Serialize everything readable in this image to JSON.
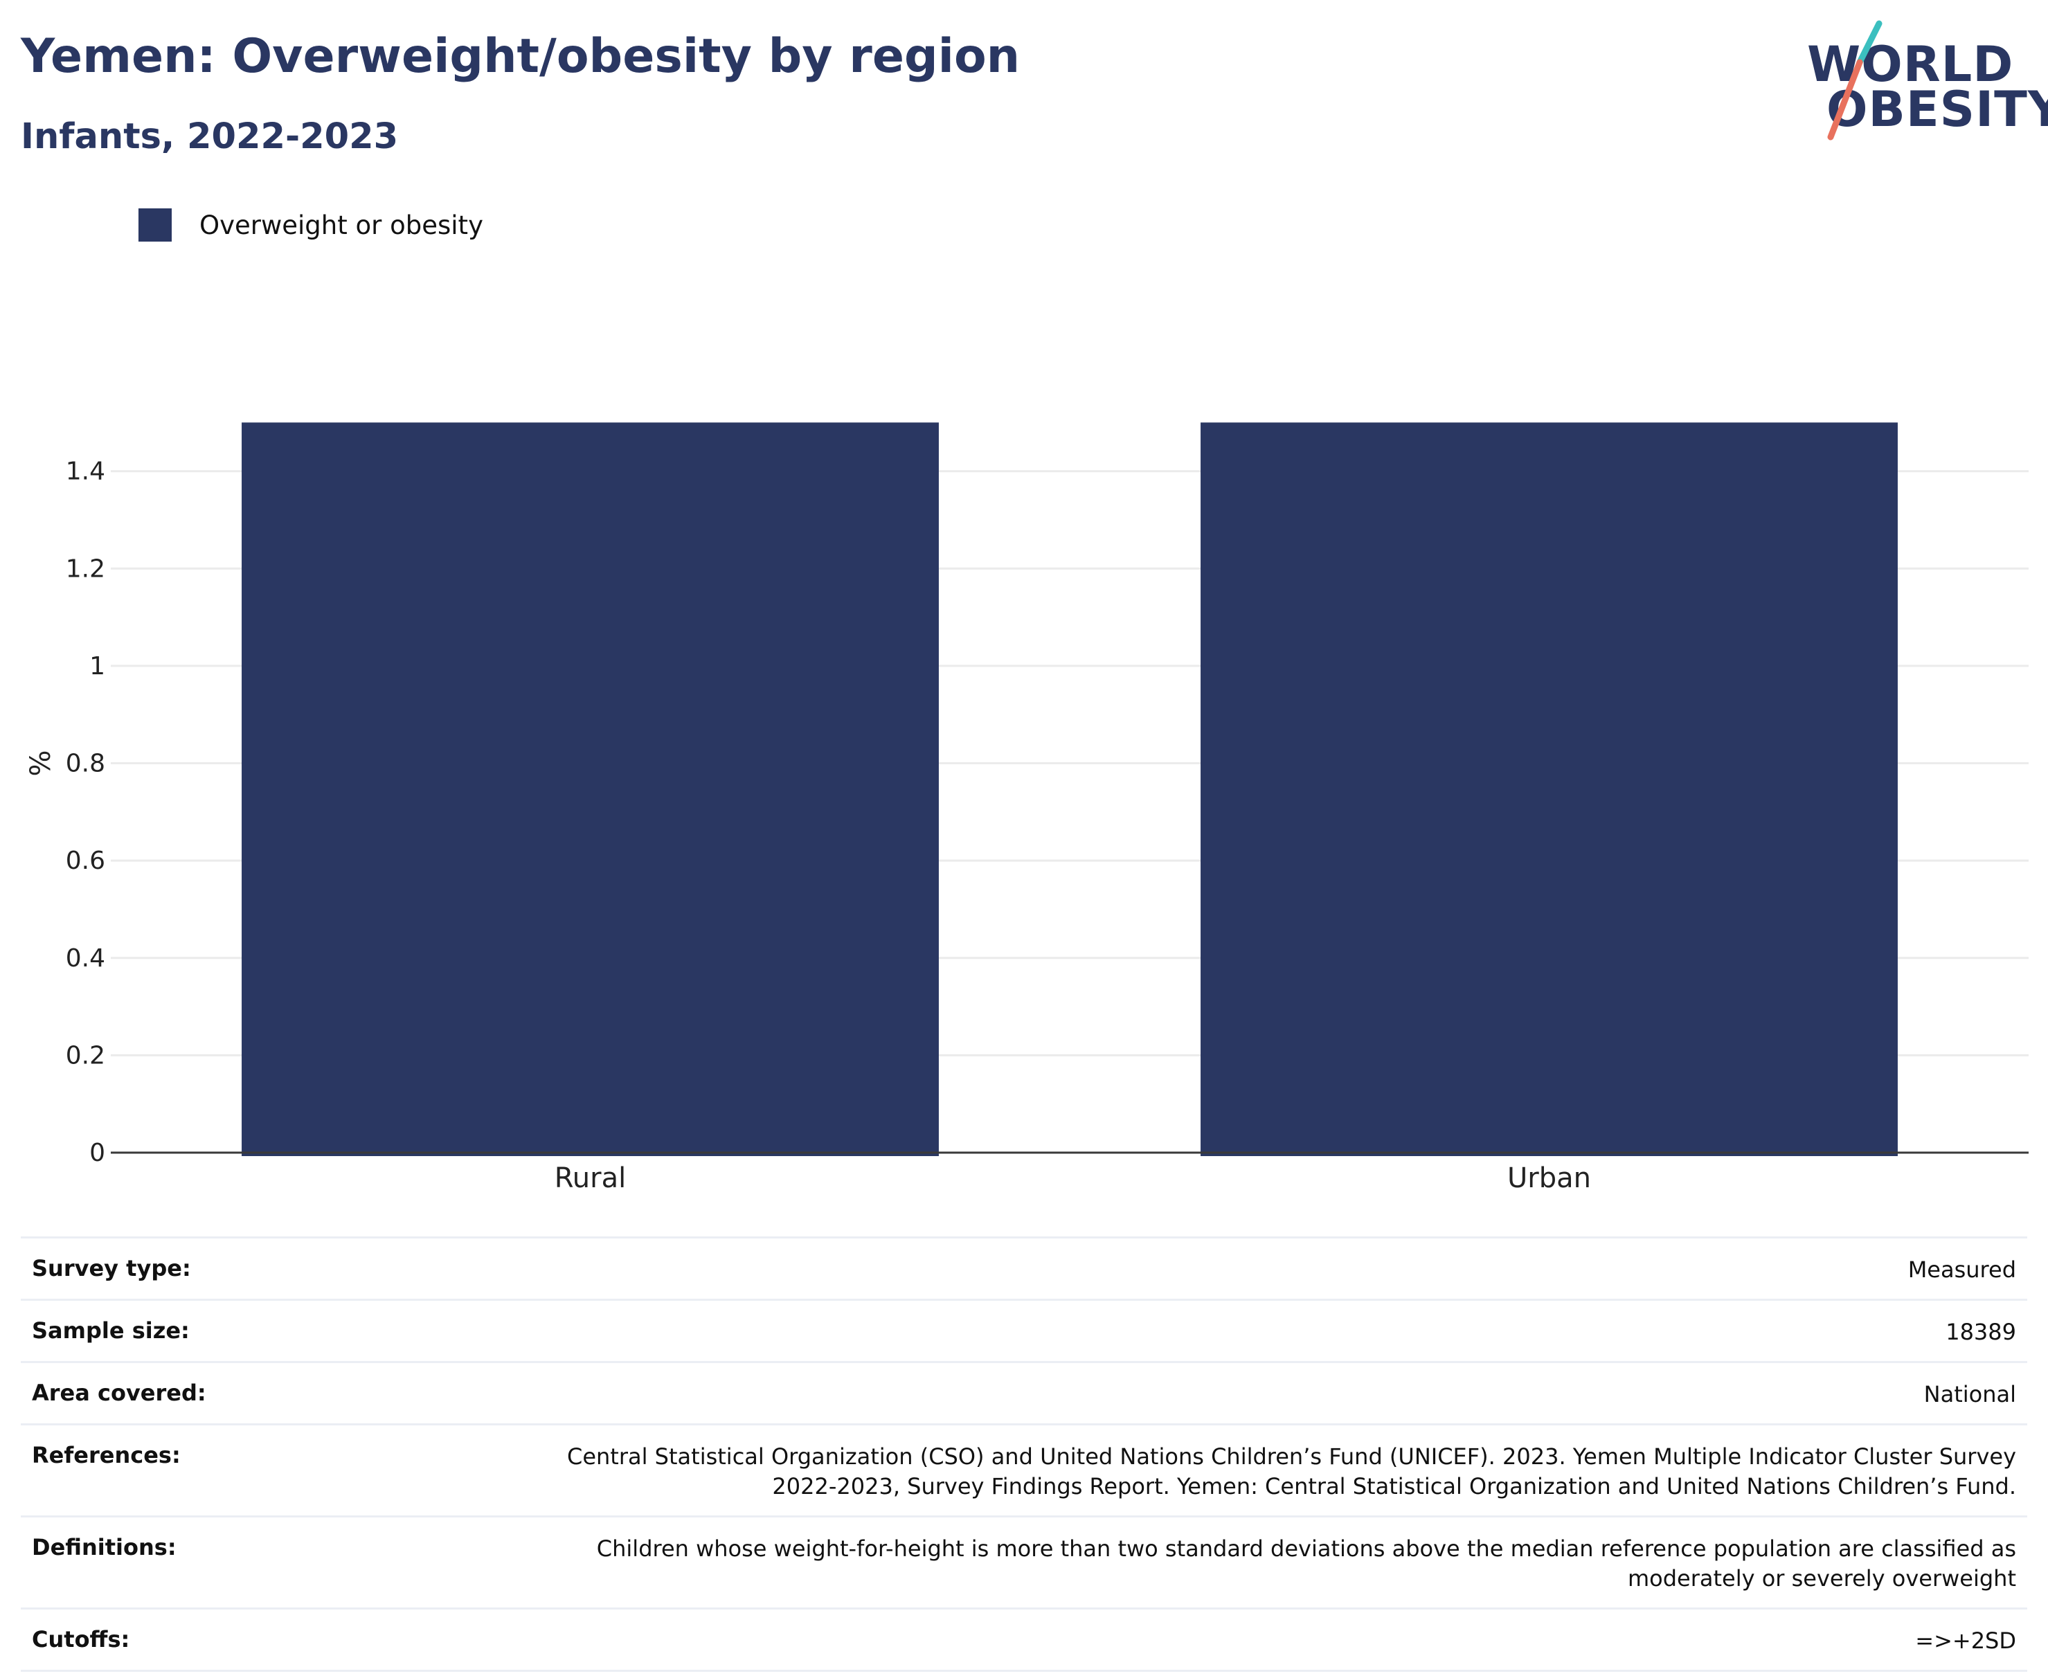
{
  "header": {
    "title": "Yemen: Overweight/obesity by region",
    "subtitle": "Infants, 2022-2023"
  },
  "logo": {
    "line1": "WORLD",
    "line2": "OBESITY",
    "slash_colors": [
      "#3bbfbf",
      "#e8715d"
    ],
    "text_color": "#2a3762"
  },
  "chart_data": {
    "type": "bar",
    "categories": [
      "Rural",
      "Urban"
    ],
    "series": [
      {
        "name": "Overweight or obesity",
        "values": [
          1.5,
          1.5
        ],
        "color": "#2a3762"
      }
    ],
    "xlabel": "",
    "ylabel": "%",
    "ylim": [
      0,
      1.6
    ],
    "yticks": [
      0,
      0.2,
      0.4,
      0.6,
      0.8,
      1,
      1.2,
      1.4
    ],
    "ytick_labels": [
      "0",
      "0.2",
      "0.4",
      "0.6",
      "0.8",
      "1",
      "1.2",
      "1.4"
    ],
    "grid": true,
    "legend": "top-left"
  },
  "info": [
    {
      "key": "Survey type:",
      "value": "Measured"
    },
    {
      "key": "Sample size:",
      "value": "18389"
    },
    {
      "key": "Area covered:",
      "value": "National"
    },
    {
      "key": "References:",
      "value": "Central Statistical Organization (CSO) and United Nations Children’s Fund (UNICEF). 2023. Yemen Multiple Indicator Cluster Survey 2022-2023, Survey Findings Report. Yemen: Central Statistical Organization and United Nations Children’s Fund."
    },
    {
      "key": "Definitions:",
      "value": "Children whose weight-for-height is more than two standard deviations above the median reference population are classified as moderately or severely overweight"
    },
    {
      "key": "Cutoffs:",
      "value": "=>+2SD"
    }
  ]
}
